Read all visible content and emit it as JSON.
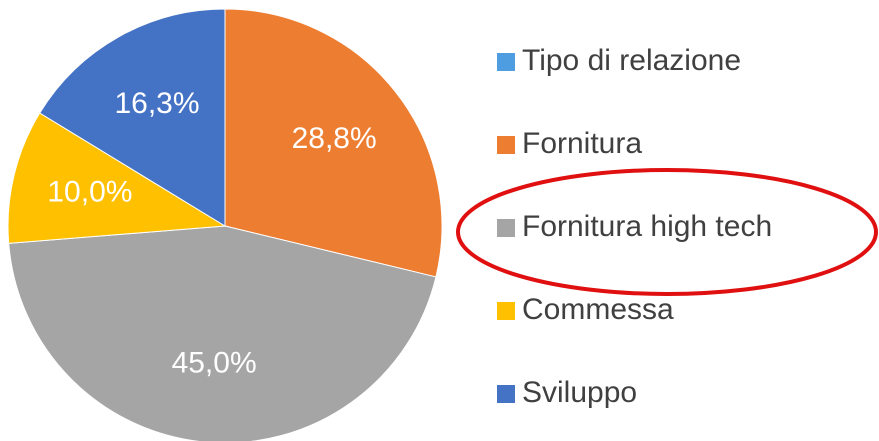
{
  "chart_data": {
    "type": "pie",
    "categories": [
      "Tipo di relazione",
      "Fornitura",
      "Fornitura high tech",
      "Commessa",
      "Sviluppo"
    ],
    "values": [
      null,
      28.8,
      45.0,
      10.0,
      16.3
    ],
    "value_labels": [
      null,
      "28,8%",
      "45,0%",
      "10,0%",
      "16,3%"
    ],
    "colors": [
      "#4e9de0",
      "#ed7d31",
      "#a5a5a5",
      "#ffc000",
      "#4472c4"
    ],
    "legend": "right"
  }
}
